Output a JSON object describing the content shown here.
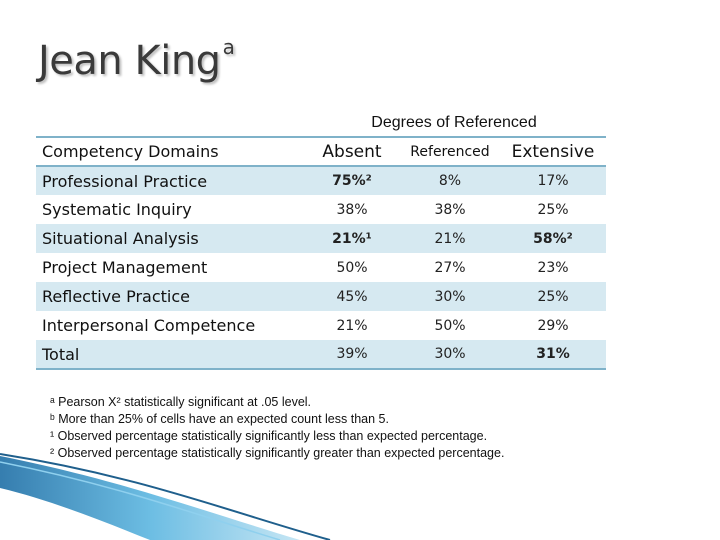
{
  "title": {
    "text": "Jean King",
    "superscript": "a"
  },
  "table": {
    "group_header": "Degrees of Referenced",
    "columns": [
      "Competency Domains",
      "Absent",
      "Referenced",
      "Extensive"
    ],
    "rows": [
      {
        "domain": "Professional Practice",
        "absent": "75%²",
        "referenced": "8%",
        "extensive": "17%"
      },
      {
        "domain": "Systematic Inquiry",
        "absent": "38%",
        "referenced": "38%",
        "extensive": "25%"
      },
      {
        "domain": "Situational Analysis",
        "absent": "21%¹",
        "referenced": "21%",
        "extensive": "58%²"
      },
      {
        "domain": "Project Management",
        "absent": "50%",
        "referenced": "27%",
        "extensive": "23%"
      },
      {
        "domain": "Reflective Practice",
        "absent": "45%",
        "referenced": "30%",
        "extensive": "25%"
      },
      {
        "domain": "Interpersonal Competence",
        "absent": "21%",
        "referenced": "50%",
        "extensive": "29%"
      },
      {
        "domain": "Total",
        "absent": "39%",
        "referenced": "30%",
        "extensive": "31%"
      }
    ]
  },
  "notes": [
    "ᵃ Pearson X² statistically significant at .05 level.",
    "ᵇ More than 25% of cells have an expected count less than 5.",
    "¹ Observed percentage statistically significantly less than expected percentage.",
    "² Observed percentage statistically significantly greater than expected percentage."
  ],
  "colors": {
    "accent": "#7fb2c9",
    "row_shade": "#d6e9f1",
    "title": "#3a3a3a",
    "decoration": "#3b9bd0"
  }
}
